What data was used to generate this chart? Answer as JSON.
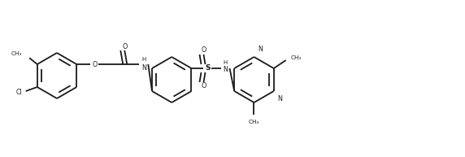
{
  "bg_color": "#ffffff",
  "line_color": "#1a1a1a",
  "line_width": 1.3,
  "fig_width": 5.72,
  "fig_height": 1.93,
  "dpi": 100,
  "xlim": [
    0,
    57.2
  ],
  "ylim": [
    0,
    19.3
  ]
}
